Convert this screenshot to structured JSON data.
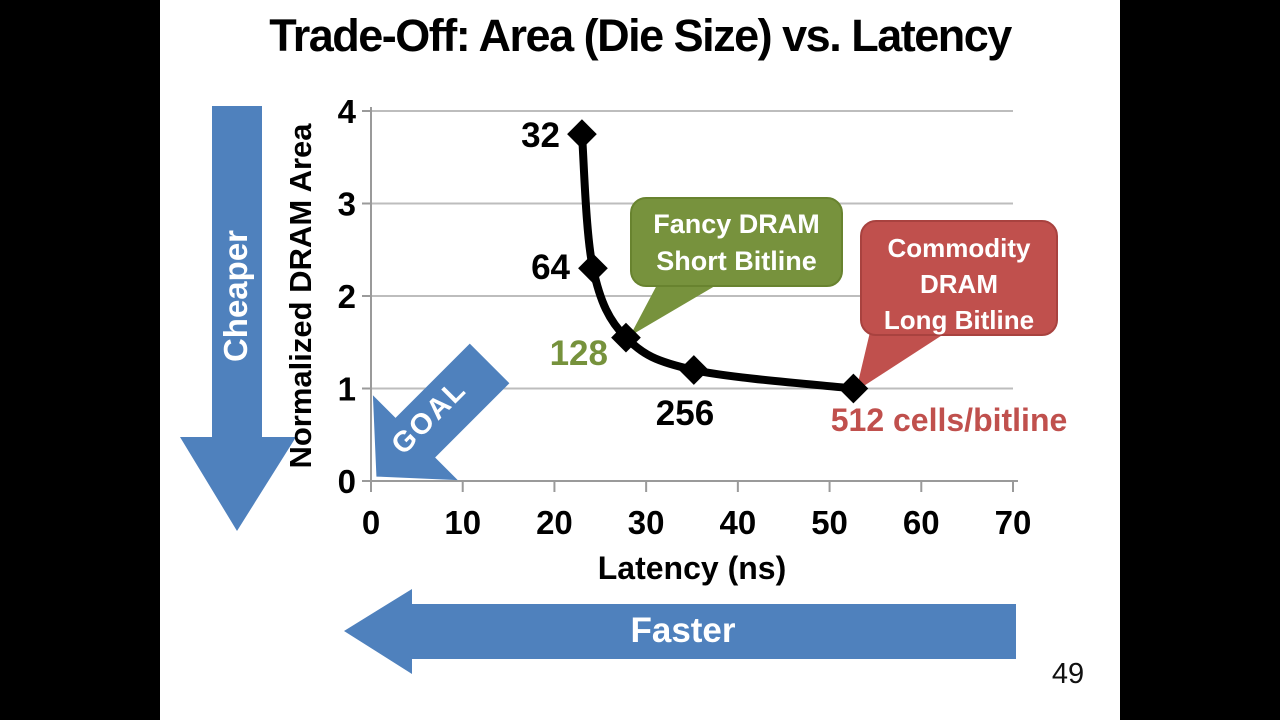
{
  "slide": {
    "title": "Trade-Off: Area (Die Size) vs. Latency",
    "page_number": "49"
  },
  "chart_data": {
    "type": "scatter",
    "title": "Trade-Off: Area (Die Size) vs. Latency",
    "xlabel": "Latency (ns)",
    "ylabel": "Normalized DRAM Area",
    "xlim": [
      0,
      70
    ],
    "ylim": [
      0,
      4
    ],
    "x_ticks": [
      0,
      10,
      20,
      30,
      40,
      50,
      60,
      70
    ],
    "y_ticks": [
      0,
      1,
      2,
      3,
      4
    ],
    "grid": "horizontal",
    "series_style": "black line with diamond markers",
    "points": [
      {
        "label": "32",
        "latency_ns": 23.0,
        "area": 3.75
      },
      {
        "label": "64",
        "latency_ns": 24.2,
        "area": 2.3
      },
      {
        "label": "128",
        "latency_ns": 27.8,
        "area": 1.55
      },
      {
        "label": "256",
        "latency_ns": 35.2,
        "area": 1.2
      },
      {
        "label": "512",
        "latency_ns": 52.6,
        "area": 1.0
      }
    ]
  },
  "annotations": {
    "cells_per_bitline_label": "512 cells/bitline",
    "goal": "GOAL",
    "cheaper": "Cheaper",
    "faster": "Faster"
  },
  "callouts": {
    "fancy": {
      "lines": [
        "Fancy DRAM",
        "Short Bitline"
      ],
      "color": "#77923D"
    },
    "commodity": {
      "lines": [
        "Commodity",
        "DRAM",
        "Long Bitline"
      ],
      "color": "#C0504D"
    }
  },
  "colors": {
    "accent_blue": "#4F81BD",
    "olive": "#76923C",
    "red": "#C0504D",
    "gridline": "#BDBDBD",
    "axis": "#9A9A9A",
    "series": "#000000"
  }
}
